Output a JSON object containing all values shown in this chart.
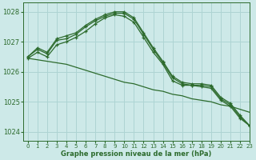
{
  "title": "Graphe pression niveau de la mer (hPa)",
  "background_color": "#cde9e8",
  "grid_color": "#aed4d3",
  "line_color": "#2d6b2d",
  "xlim": [
    -0.5,
    23
  ],
  "ylim": [
    1023.7,
    1028.3
  ],
  "yticks": [
    1024,
    1025,
    1026,
    1027,
    1028
  ],
  "xticks": [
    0,
    1,
    2,
    3,
    4,
    5,
    6,
    7,
    8,
    9,
    10,
    11,
    12,
    13,
    14,
    15,
    16,
    17,
    18,
    19,
    20,
    21,
    22,
    23
  ],
  "series_marked": [
    [
      1026.45,
      1026.65,
      1026.5,
      1026.9,
      1027.0,
      1027.15,
      1027.35,
      1027.6,
      1027.8,
      1027.9,
      1027.85,
      1027.65,
      1027.15,
      1026.65,
      1026.25,
      1025.7,
      1025.55,
      1025.55,
      1025.5,
      1025.45,
      1025.05,
      1024.85,
      1024.45,
      1024.2
    ],
    [
      1026.5,
      1026.75,
      1026.6,
      1027.05,
      1027.1,
      1027.25,
      1027.5,
      1027.7,
      1027.85,
      1027.95,
      1027.95,
      1027.75,
      1027.25,
      1026.75,
      1026.3,
      1025.8,
      1025.6,
      1025.55,
      1025.55,
      1025.5,
      1025.1,
      1024.9,
      1024.5,
      1024.2
    ],
    [
      1026.5,
      1026.8,
      1026.65,
      1027.1,
      1027.2,
      1027.3,
      1027.55,
      1027.75,
      1027.9,
      1028.0,
      1028.0,
      1027.8,
      1027.3,
      1026.8,
      1026.35,
      1025.85,
      1025.65,
      1025.6,
      1025.6,
      1025.55,
      1025.15,
      1024.95,
      1024.55,
      1024.2
    ]
  ],
  "series_plain": [
    [
      1026.45,
      1026.4,
      1026.35,
      1026.3,
      1026.25,
      1026.15,
      1026.05,
      1025.95,
      1025.85,
      1025.75,
      1025.65,
      1025.6,
      1025.5,
      1025.4,
      1025.35,
      1025.25,
      1025.2,
      1025.1,
      1025.05,
      1025.0,
      1024.9,
      1024.85,
      1024.75,
      1024.65
    ]
  ]
}
